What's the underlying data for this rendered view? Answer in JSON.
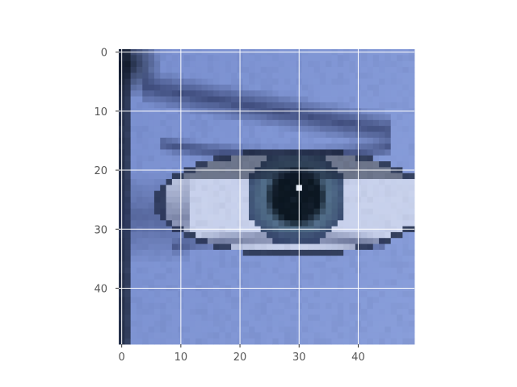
{
  "chart_data": {
    "type": "heatmap",
    "image_kind": "pixelated photograph of a human eye (blue-tinted)",
    "grid_shape": [
      50,
      50
    ],
    "xlim": [
      -0.5,
      49.5
    ],
    "ylim": [
      49.5,
      -0.5
    ],
    "y_axis_inverted": true,
    "x_ticks": [
      0,
      10,
      20,
      30,
      40
    ],
    "y_ticks": [
      0,
      10,
      20,
      30,
      40
    ],
    "x_tick_labels": [
      "0",
      "10",
      "20",
      "30",
      "40"
    ],
    "y_tick_labels": [
      "0",
      "10",
      "20",
      "30",
      "40"
    ],
    "grid": true,
    "grid_color": "#ffffff",
    "title": "",
    "xlabel": "",
    "ylabel": "",
    "colors": {
      "skin_light": "#8ea3de",
      "skin_mid": "#6d83c6",
      "shadow": "#2a3560",
      "dark": "#101828",
      "sclera": "#c9d2ec",
      "iris": "#4f6b86",
      "pupil": "#0b1620",
      "highlight": "#e6ecf7",
      "tick_text": "#555555",
      "axis_line": "#333333"
    }
  }
}
